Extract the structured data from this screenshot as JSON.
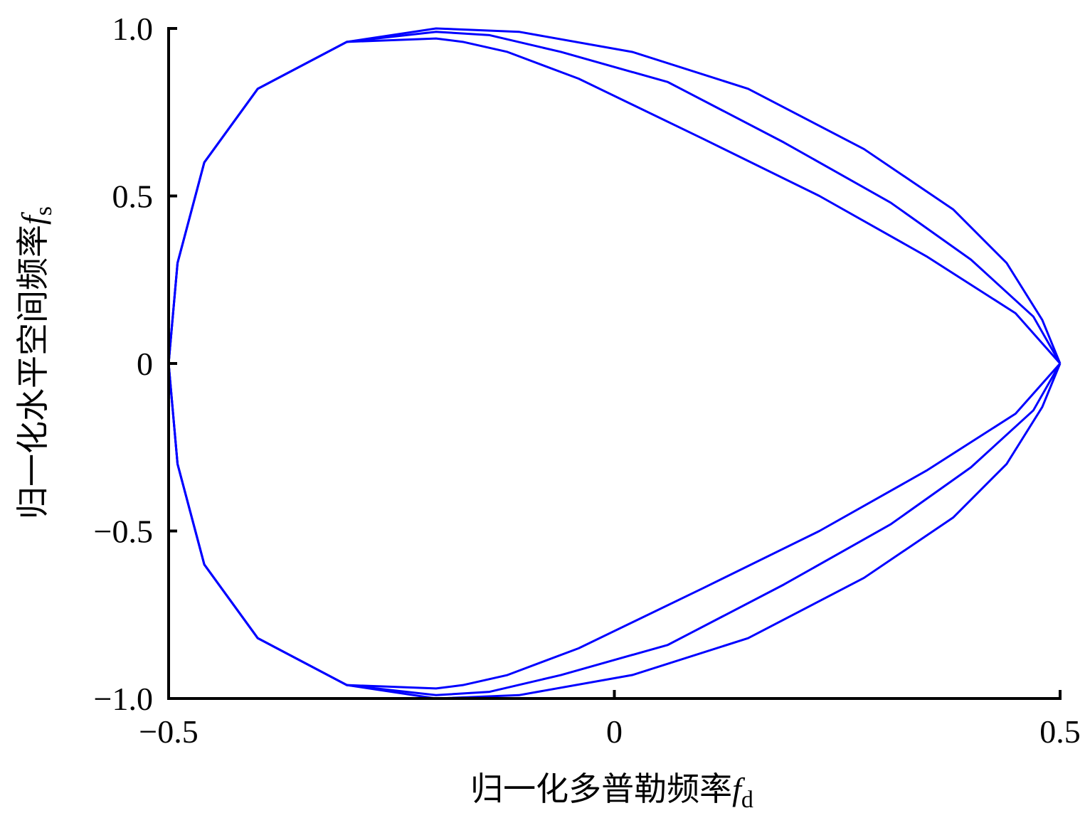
{
  "chart_data": {
    "type": "line",
    "xlabel": "归一化多普勒频率",
    "xlabel_symbol": "f",
    "xlabel_subscript": "d",
    "ylabel": "归一化水平空间频率",
    "ylabel_symbol": "f",
    "ylabel_subscript": "s",
    "xlim": [
      -0.5,
      0.5
    ],
    "ylim": [
      -1,
      1
    ],
    "xticks": [
      {
        "value": -0.5,
        "label": "−0.5"
      },
      0,
      0.5
    ],
    "yticks": [
      {
        "value": -1,
        "label": "−1.0"
      },
      {
        "value": -0.5,
        "label": "−0.5"
      },
      0,
      0.5,
      {
        "value": 1,
        "label": "1.0"
      }
    ],
    "series": [
      {
        "color": "#0000ff",
        "x": [
          0.5,
          0.48,
          0.44,
          0.38,
          0.28,
          0.15,
          0.02,
          -0.107,
          -0.2,
          -0.3,
          -0.4,
          -0.46,
          -0.49,
          -0.5,
          -0.49,
          -0.46,
          -0.4,
          -0.3,
          -0.2,
          -0.107,
          0.02,
          0.15,
          0.28,
          0.38,
          0.44,
          0.48,
          0.5
        ],
        "values": [
          0,
          0.13,
          0.3,
          0.46,
          0.64,
          0.82,
          0.93,
          0.99,
          1.0,
          0.96,
          0.82,
          0.6,
          0.3,
          0,
          -0.3,
          -0.6,
          -0.82,
          -0.96,
          -1.0,
          -0.99,
          -0.93,
          -0.82,
          -0.64,
          -0.46,
          -0.3,
          -0.13,
          0
        ]
      },
      {
        "color": "#0000ff",
        "x": [
          0.5,
          0.47,
          0.4,
          0.31,
          0.19,
          0.06,
          -0.06,
          -0.14,
          -0.2,
          -0.3,
          -0.4,
          -0.46,
          -0.49,
          -0.5,
          -0.49,
          -0.46,
          -0.4,
          -0.3,
          -0.2,
          -0.14,
          -0.06,
          0.06,
          0.19,
          0.31,
          0.4,
          0.47,
          0.5
        ],
        "values": [
          0,
          0.14,
          0.31,
          0.48,
          0.66,
          0.84,
          0.93,
          0.98,
          0.99,
          0.96,
          0.82,
          0.6,
          0.3,
          0,
          -0.3,
          -0.6,
          -0.82,
          -0.96,
          -0.99,
          -0.98,
          -0.93,
          -0.84,
          -0.66,
          -0.48,
          -0.31,
          -0.14,
          0
        ]
      },
      {
        "color": "#0000ff",
        "x": [
          0.5,
          0.45,
          0.35,
          0.23,
          0.1,
          -0.04,
          -0.12,
          -0.17,
          -0.2,
          -0.3,
          -0.4,
          -0.46,
          -0.49,
          -0.5,
          -0.49,
          -0.46,
          -0.4,
          -0.3,
          -0.2,
          -0.17,
          -0.12,
          -0.04,
          0.1,
          0.23,
          0.35,
          0.45,
          0.5
        ],
        "values": [
          0,
          0.15,
          0.32,
          0.5,
          0.67,
          0.85,
          0.93,
          0.96,
          0.97,
          0.96,
          0.82,
          0.6,
          0.3,
          0,
          -0.3,
          -0.6,
          -0.82,
          -0.96,
          -0.97,
          -0.96,
          -0.93,
          -0.85,
          -0.67,
          -0.5,
          -0.32,
          -0.15,
          0
        ]
      }
    ]
  }
}
